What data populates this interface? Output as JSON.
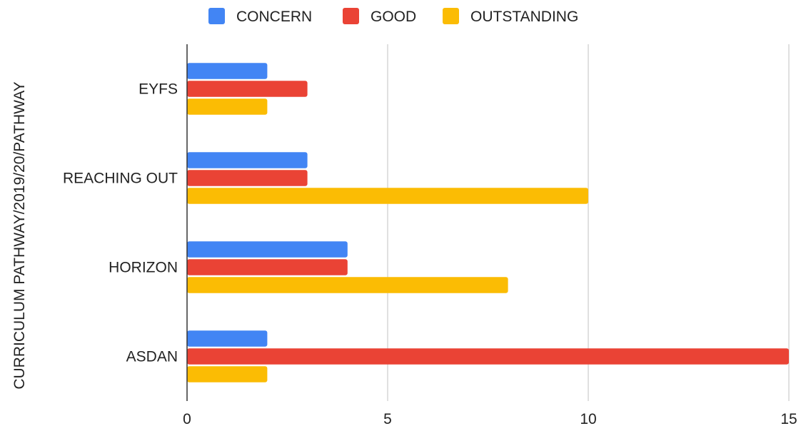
{
  "chart_data": {
    "type": "bar",
    "orientation": "horizontal",
    "categories": [
      "EYFS",
      "REACHING OUT",
      "HORIZON",
      "ASDAN"
    ],
    "series": [
      {
        "name": "CONCERN",
        "color": "#4285f4",
        "values": [
          2,
          3,
          4,
          2
        ]
      },
      {
        "name": "GOOD",
        "color": "#ea4335",
        "values": [
          3,
          3,
          4,
          15
        ]
      },
      {
        "name": "OUTSTANDING",
        "color": "#fbbc04",
        "values": [
          2,
          10,
          8,
          2
        ]
      }
    ],
    "title": "",
    "xlabel": "",
    "ylabel": "CURRICULUM PATHWAY/2019/20/PATHWAY",
    "xlim": [
      0,
      15
    ],
    "xticks": [
      "0",
      "5",
      "10",
      "15"
    ],
    "grid": true,
    "legend_position": "top"
  }
}
